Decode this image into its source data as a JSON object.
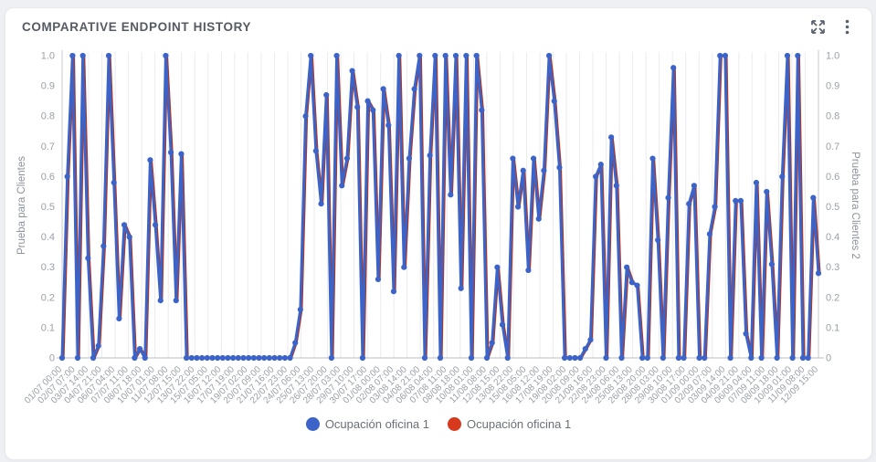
{
  "header": {
    "title": "COMPARATIVE ENDPOINT HISTORY",
    "expand_icon": "expand-arrows",
    "menu_icon": "kebab-vertical-dots"
  },
  "colors": {
    "page_bg": "#eef0f4",
    "card_bg": "#ffffff",
    "series_blue": "#3b63c8",
    "series_red": "#d7391d",
    "series_red_line": "#b23422",
    "grid": "#ebebee",
    "axis_line": "#c6c9d0",
    "tick_text": "#9aa0a8",
    "title_text": "#555a63"
  },
  "chart_data": {
    "type": "line",
    "title": "COMPARATIVE ENDPOINT HISTORY",
    "grid": "vertical-only",
    "legend_position": "bottom-center",
    "y_axis_left": {
      "label": "Prueba para Clientes",
      "range": [
        0,
        1
      ],
      "ticks": [
        "1.0",
        "0.9",
        "0.8",
        "0.7",
        "0.6",
        "0.5",
        "0.4",
        "0.3",
        "0.2",
        "0.1",
        "0"
      ]
    },
    "y_axis_right": {
      "label": "Prueba para Clientes 2",
      "range": [
        0,
        1
      ],
      "ticks": [
        "1.0",
        "0.9",
        "0.8",
        "0.7",
        "0.6",
        "0.5",
        "0.4",
        "0.3",
        "0.2",
        "0.1",
        "0"
      ]
    },
    "x_labels": [
      "01/07 00:00",
      "02/07 07:00",
      "03/07 14:00",
      "04/07 21:00",
      "06/07 04:00",
      "07/07 11:00",
      "08/07 18:00",
      "10/07 01:00",
      "11/07 08:00",
      "12/07 15:00",
      "13/07 22:00",
      "15/07 05:00",
      "16/07 12:00",
      "17/07 19:00",
      "19/07 02:00",
      "20/07 09:00",
      "21/07 16:00",
      "22/07 23:00",
      "24/07 06:00",
      "25/07 13:00",
      "26/07 20:00",
      "28/07 03:00",
      "29/07 10:00",
      "30/07 17:00",
      "01/08 00:00",
      "02/08 07:00",
      "03/08 14:00",
      "04/08 21:00",
      "06/08 04:00",
      "07/08 11:00",
      "08/08 18:00",
      "10/08 01:00",
      "11/08 08:00",
      "12/08 15:00",
      "13/08 22:00",
      "15/08 05:00",
      "16/08 12:00",
      "17/08 19:00",
      "19/08 02:00",
      "20/08 09:00",
      "21/08 16:00",
      "22/08 23:00",
      "24/08 06:00",
      "25/08 13:00",
      "26/08 20:00",
      "28/08 03:00",
      "29/08 10:00",
      "30/08 17:00",
      "01/09 00:00",
      "02/09 07:00",
      "03/09 14:00",
      "04/09 21:00",
      "06/09 04:00",
      "07/09 11:00",
      "08/09 18:00",
      "10/09 01:00",
      "11/09 08:00",
      "12/09 15:00"
    ],
    "series": [
      {
        "name": "Ocupación oficina 1",
        "color": "#3b63c8",
        "axis": "left",
        "marker": "circle",
        "values": [
          0,
          0.6,
          1,
          0,
          1,
          0.33,
          0,
          0.04,
          0.37,
          1,
          0.58,
          0.13,
          0.44,
          0.4,
          0,
          0.03,
          0,
          0.655,
          0.44,
          0.19,
          1,
          0.68,
          0.19,
          0.675,
          0,
          0,
          0,
          0,
          0,
          0,
          0,
          0,
          0,
          0,
          0,
          0,
          0,
          0,
          0,
          0,
          0,
          0,
          0,
          0,
          0,
          0.05,
          0.16,
          0.8,
          1,
          0.685,
          0.51,
          0.87,
          0,
          1,
          0.57,
          0.66,
          0.95,
          0.83,
          0,
          0.85,
          0.82,
          0.26,
          0.89,
          0.77,
          0.22,
          1,
          0.3,
          0.66,
          0.89,
          1,
          0,
          0.67,
          1,
          0,
          1,
          0.54,
          1,
          0.23,
          1,
          0,
          1,
          0.82,
          0,
          0.05,
          0.3,
          0.11,
          0,
          0.66,
          0.5,
          0.62,
          0.29,
          0.66,
          0.46,
          0.62,
          1,
          0.85,
          0.63,
          0,
          0,
          0,
          0,
          0.03,
          0.06,
          0.6,
          0.64,
          0,
          0.73,
          0.57,
          0,
          0.3,
          0.25,
          0.24,
          0,
          0,
          0.66,
          0.39,
          0,
          0.53,
          0.96,
          0,
          0,
          0.51,
          0.57,
          0,
          0,
          0.41,
          0.5,
          1,
          1,
          0,
          0.52,
          0.52,
          0.08,
          0,
          0.58,
          0,
          0.55,
          0.31,
          0,
          0.6,
          1,
          0,
          1,
          0,
          0,
          0.53,
          0.28
        ]
      },
      {
        "name": "Ocupación oficina 1",
        "color": "#d7391d",
        "axis": "right",
        "marker": "circle",
        "values_same_as_series": 0
      }
    ],
    "legend": [
      {
        "label": "Ocupación oficina 1",
        "color": "#3b63c8"
      },
      {
        "label": "Ocupación oficina 1",
        "color": "#d7391d"
      }
    ]
  }
}
